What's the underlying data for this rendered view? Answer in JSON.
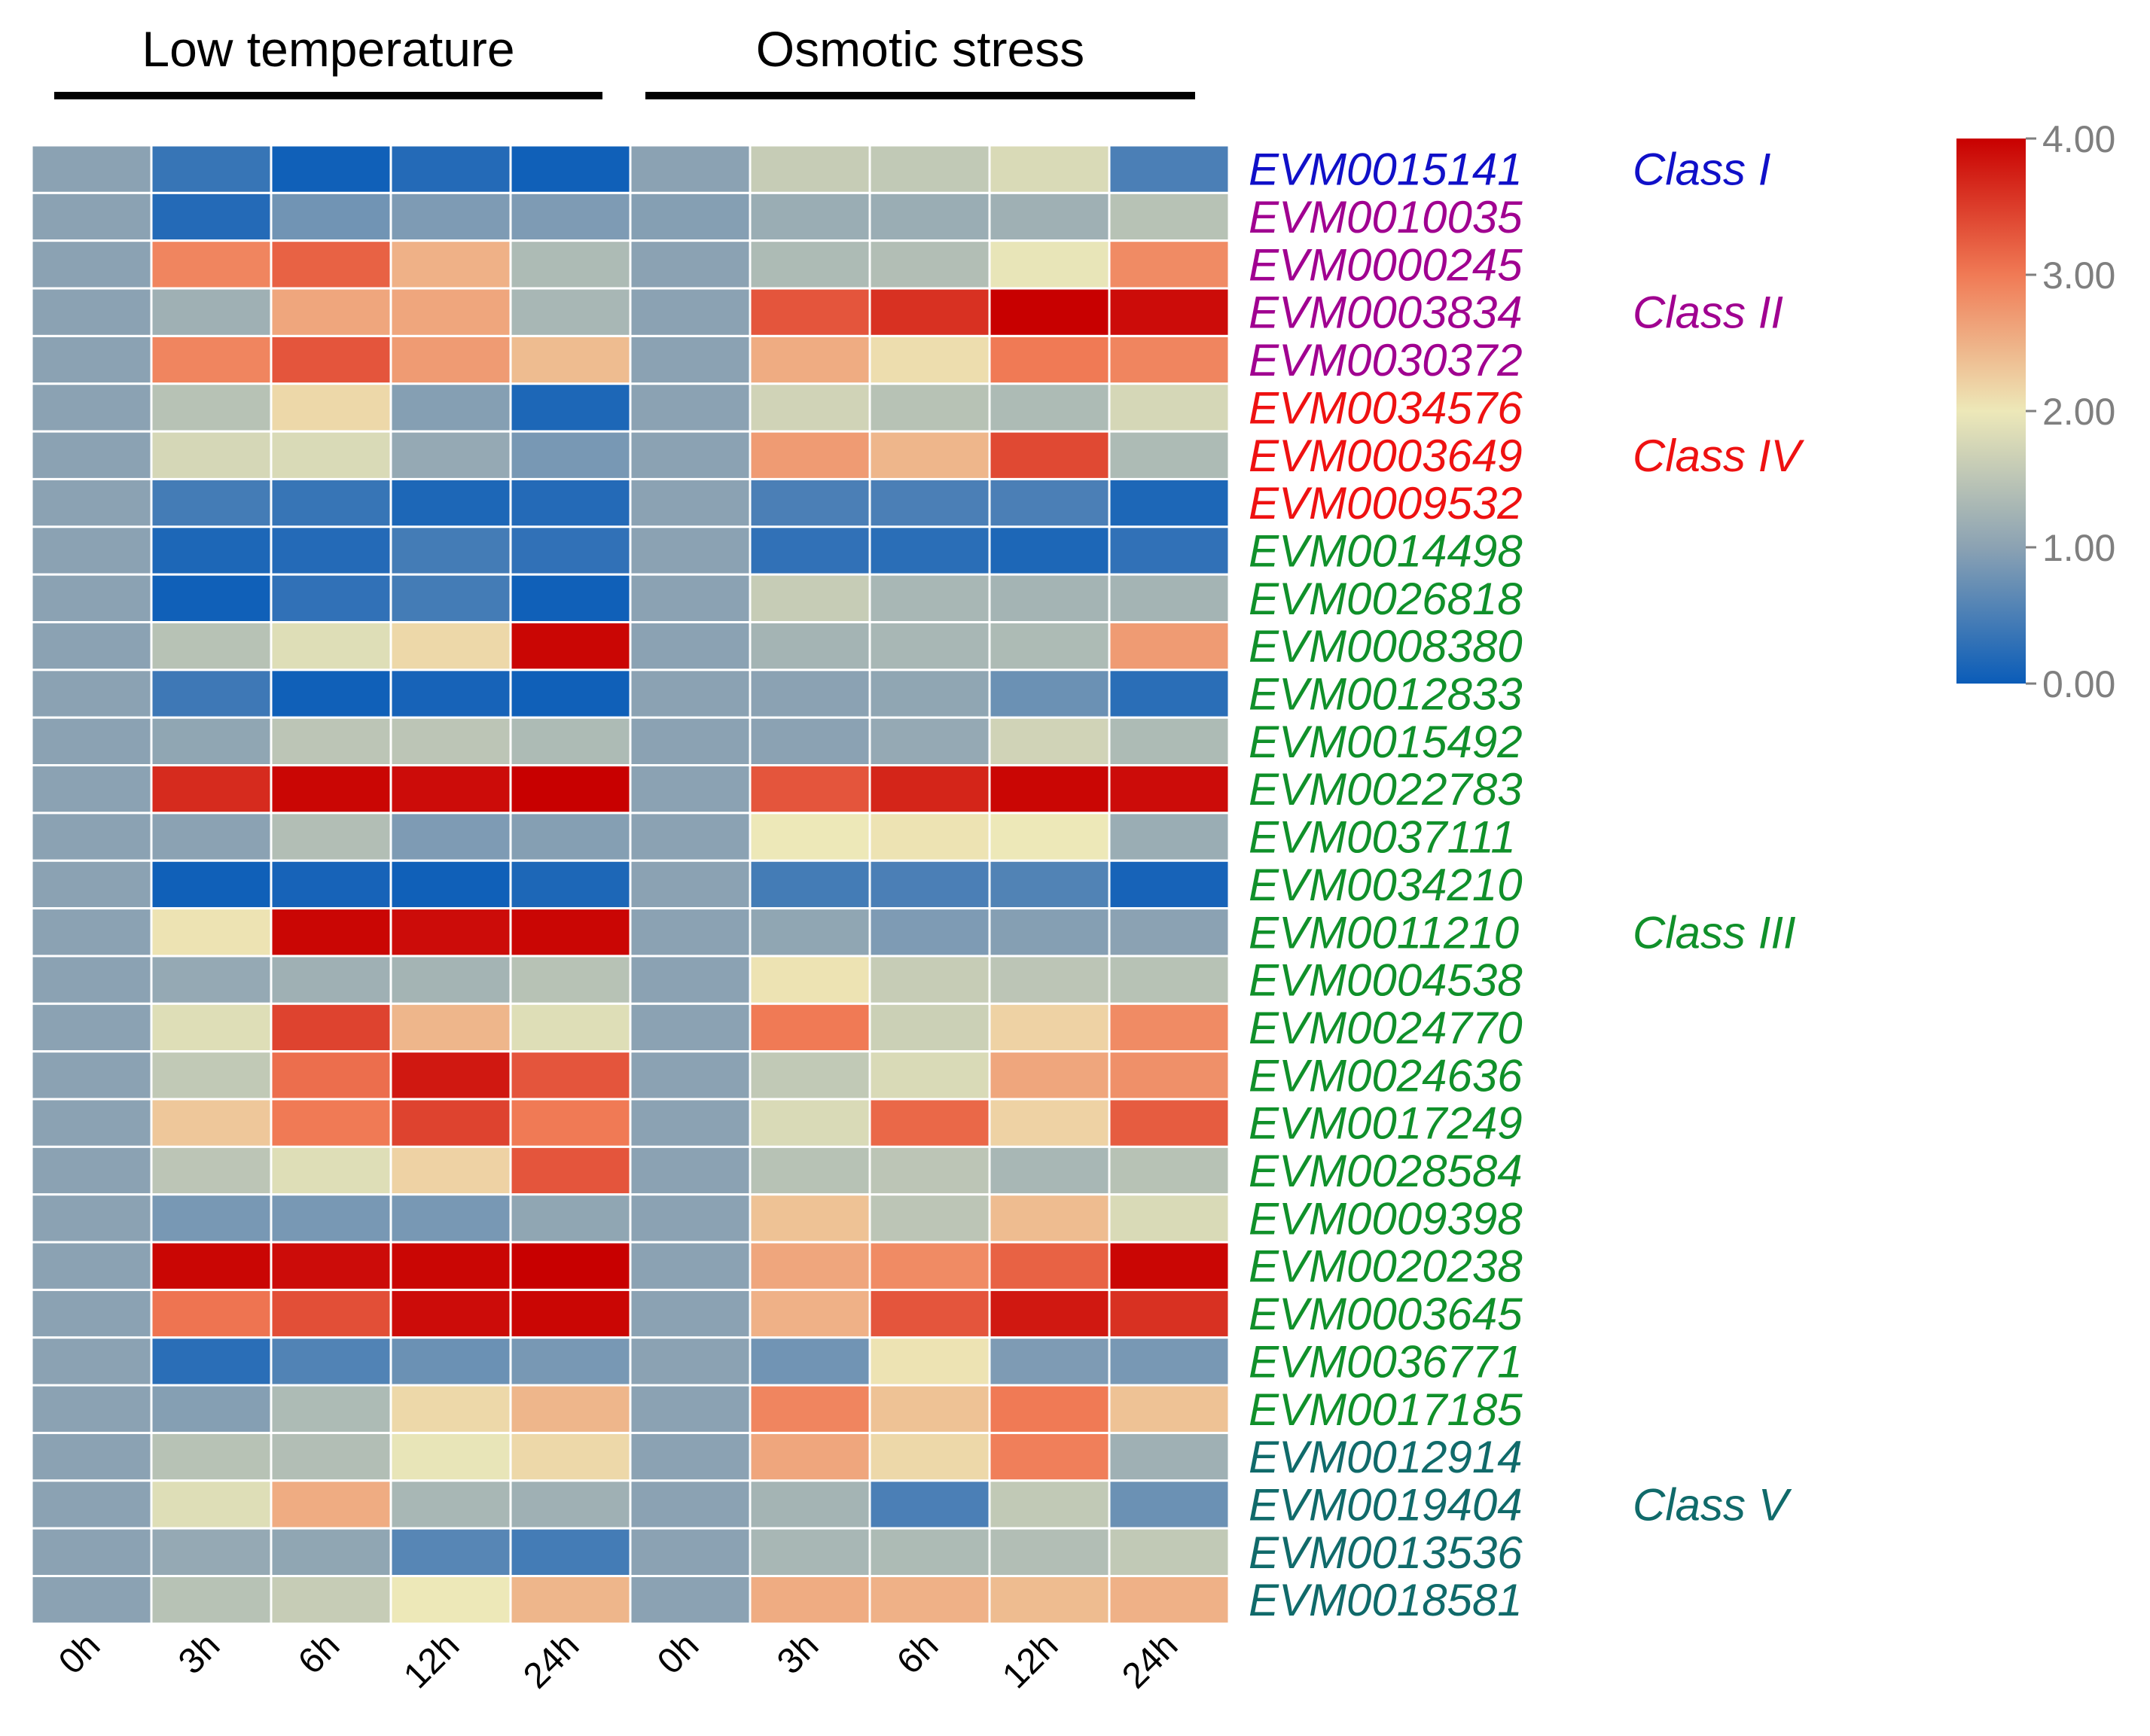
{
  "chart_data": {
    "type": "heatmap",
    "title": "",
    "groups": [
      "Low temperature",
      "Osmotic stress"
    ],
    "timepoints": [
      "0h",
      "3h",
      "6h",
      "12h",
      "24h"
    ],
    "columns": [
      "0h",
      "3h",
      "6h",
      "12h",
      "24h",
      "0h",
      "3h",
      "6h",
      "12h",
      "24h"
    ],
    "colorbar": {
      "min": 0,
      "max": 4,
      "ticks": [
        "0.00",
        "1.00",
        "2.00",
        "3.00",
        "4.00"
      ]
    },
    "colors": {
      "low": "#0a5cb8",
      "mid1": "#8ba2b3",
      "mid2": "#ede8b8",
      "mid3": "#f07a55",
      "high": "#c80000",
      "class_I": "#1010c8",
      "class_II": "#a00090",
      "class_IV": "#ee1111",
      "class_III": "#10902a",
      "class_V": "#106a6a"
    },
    "rows": [
      {
        "gene": "EVM0015141",
        "cls": "I",
        "values": [
          1.0,
          0.35,
          0.05,
          0.2,
          0.05,
          1.0,
          1.6,
          1.55,
          1.8,
          0.5
        ]
      },
      {
        "gene": "EVM0010035",
        "cls": "II",
        "values": [
          1.0,
          0.2,
          0.8,
          0.9,
          0.9,
          0.95,
          1.15,
          1.15,
          1.2,
          1.45
        ]
      },
      {
        "gene": "EVM0000245",
        "cls": "II",
        "values": [
          1.0,
          2.9,
          3.2,
          2.5,
          1.35,
          1.0,
          1.35,
          1.4,
          1.95,
          2.85
        ]
      },
      {
        "gene": "EVM0003834",
        "cls": "II",
        "values": [
          1.0,
          1.2,
          2.6,
          2.6,
          1.3,
          1.0,
          3.3,
          3.6,
          4.0,
          3.9
        ]
      },
      {
        "gene": "EVM0030372",
        "cls": "II",
        "values": [
          1.0,
          2.9,
          3.3,
          2.7,
          2.4,
          1.0,
          2.55,
          2.1,
          3.0,
          2.9
        ]
      },
      {
        "gene": "EVM0034576",
        "cls": "IV",
        "values": [
          1.0,
          1.45,
          2.15,
          0.95,
          0.15,
          1.0,
          1.7,
          1.45,
          1.35,
          1.75
        ]
      },
      {
        "gene": "EVM0003649",
        "cls": "IV",
        "values": [
          1.0,
          1.75,
          1.8,
          1.1,
          0.85,
          1.0,
          2.7,
          2.45,
          3.4,
          1.35
        ]
      },
      {
        "gene": "EVM0009532",
        "cls": "IV",
        "values": [
          1.0,
          0.45,
          0.35,
          0.15,
          0.2,
          1.0,
          0.5,
          0.5,
          0.5,
          0.15
        ]
      },
      {
        "gene": "EVM0014498",
        "cls": "III",
        "values": [
          1.0,
          0.15,
          0.2,
          0.45,
          0.3,
          1.0,
          0.3,
          0.25,
          0.15,
          0.3
        ]
      },
      {
        "gene": "EVM0026818",
        "cls": "III",
        "values": [
          1.0,
          0.05,
          0.3,
          0.45,
          0.05,
          1.0,
          1.6,
          1.3,
          1.25,
          1.25
        ]
      },
      {
        "gene": "EVM0008380",
        "cls": "III",
        "values": [
          1.0,
          1.45,
          1.85,
          2.15,
          3.95,
          1.0,
          1.25,
          1.3,
          1.35,
          2.7
        ]
      },
      {
        "gene": "EVM0012833",
        "cls": "III",
        "values": [
          1.0,
          0.4,
          0.05,
          0.1,
          0.05,
          1.0,
          1.0,
          1.05,
          0.75,
          0.25
        ]
      },
      {
        "gene": "EVM0015492",
        "cls": "III",
        "values": [
          1.0,
          1.05,
          1.5,
          1.5,
          1.35,
          1.0,
          1.0,
          1.1,
          1.7,
          1.35
        ]
      },
      {
        "gene": "EVM0022783",
        "cls": "III",
        "values": [
          1.0,
          3.65,
          3.95,
          3.9,
          4.0,
          1.0,
          3.3,
          3.7,
          3.95,
          3.9
        ]
      },
      {
        "gene": "EVM0037111",
        "cls": "III",
        "values": [
          1.0,
          1.0,
          1.4,
          0.9,
          0.95,
          1.0,
          2.0,
          2.05,
          2.0,
          1.15
        ]
      },
      {
        "gene": "EVM0034210",
        "cls": "III",
        "values": [
          1.0,
          0.05,
          0.1,
          0.05,
          0.15,
          1.0,
          0.45,
          0.5,
          0.55,
          0.1
        ]
      },
      {
        "gene": "EVM0011210",
        "cls": "III",
        "values": [
          1.0,
          2.05,
          3.95,
          3.9,
          3.95,
          1.0,
          1.05,
          0.9,
          0.95,
          1.0
        ]
      },
      {
        "gene": "EVM0004538",
        "cls": "III",
        "values": [
          1.0,
          1.1,
          1.2,
          1.25,
          1.45,
          1.0,
          2.05,
          1.6,
          1.5,
          1.45
        ]
      },
      {
        "gene": "EVM0024770",
        "cls": "III",
        "values": [
          1.0,
          1.85,
          3.45,
          2.45,
          1.85,
          1.0,
          3.0,
          1.65,
          2.2,
          2.85
        ]
      },
      {
        "gene": "EVM0024636",
        "cls": "III",
        "values": [
          1.0,
          1.55,
          3.1,
          3.8,
          3.3,
          1.0,
          1.55,
          1.8,
          2.6,
          2.8
        ]
      },
      {
        "gene": "EVM0017249",
        "cls": "III",
        "values": [
          1.0,
          2.3,
          3.0,
          3.45,
          3.0,
          1.0,
          1.8,
          3.15,
          2.2,
          3.25
        ]
      },
      {
        "gene": "EVM0028584",
        "cls": "III",
        "values": [
          1.0,
          1.5,
          1.85,
          2.2,
          3.3,
          1.0,
          1.45,
          1.5,
          1.3,
          1.45
        ]
      },
      {
        "gene": "EVM0009398",
        "cls": "III",
        "values": [
          1.0,
          0.85,
          0.85,
          0.85,
          1.05,
          1.0,
          2.35,
          1.5,
          2.4,
          1.8
        ]
      },
      {
        "gene": "EVM0020238",
        "cls": "III",
        "values": [
          1.0,
          3.95,
          3.9,
          3.95,
          4.0,
          1.0,
          2.6,
          2.85,
          3.2,
          3.95
        ]
      },
      {
        "gene": "EVM0003645",
        "cls": "III",
        "values": [
          1.0,
          3.05,
          3.35,
          3.9,
          3.95,
          1.0,
          2.5,
          3.3,
          3.8,
          3.6
        ]
      },
      {
        "gene": "EVM0036771",
        "cls": "III",
        "values": [
          1.0,
          0.25,
          0.55,
          0.75,
          0.85,
          1.0,
          0.8,
          2.05,
          0.9,
          0.85
        ]
      },
      {
        "gene": "EVM0017185",
        "cls": "III",
        "values": [
          1.0,
          0.95,
          1.35,
          2.15,
          2.45,
          1.0,
          2.9,
          2.35,
          3.0,
          2.35
        ]
      },
      {
        "gene": "EVM0012914",
        "cls": "V",
        "values": [
          1.0,
          1.45,
          1.4,
          1.95,
          2.15,
          1.0,
          2.6,
          2.15,
          2.95,
          1.2
        ]
      },
      {
        "gene": "EVM0019404",
        "cls": "V",
        "values": [
          1.0,
          1.85,
          2.55,
          1.3,
          1.2,
          1.0,
          1.25,
          0.5,
          1.55,
          0.75
        ]
      },
      {
        "gene": "EVM0013536",
        "cls": "V",
        "values": [
          1.0,
          1.1,
          1.05,
          0.6,
          0.45,
          1.0,
          1.3,
          1.35,
          1.4,
          1.55
        ]
      },
      {
        "gene": "EVM0018581",
        "cls": "V",
        "values": [
          1.0,
          1.45,
          1.6,
          2.0,
          2.45,
          1.0,
          2.55,
          2.5,
          2.4,
          2.5
        ]
      }
    ],
    "class_labels": [
      {
        "cls": "I",
        "label": "Class I",
        "row": 0
      },
      {
        "cls": "II",
        "label": "Class II",
        "row": 3
      },
      {
        "cls": "IV",
        "label": "Class IV",
        "row": 6
      },
      {
        "cls": "III",
        "label": "Class III",
        "row": 16
      },
      {
        "cls": "V",
        "label": "Class V",
        "row": 28
      }
    ]
  }
}
